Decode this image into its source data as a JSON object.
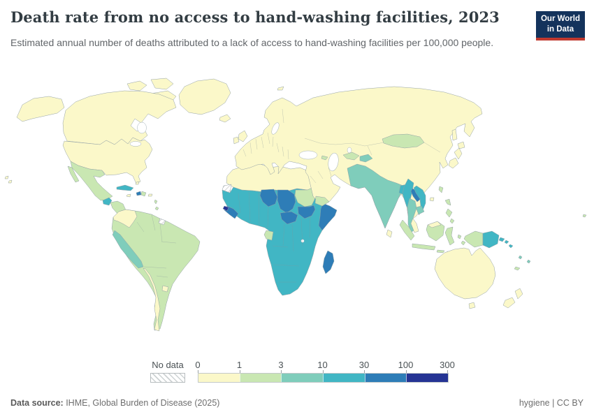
{
  "header": {
    "title": "Death rate from no access to hand-washing facilities, 2023",
    "subtitle": "Estimated annual number of deaths attributed to a lack of access to hand-washing facilities per 100,000 people.",
    "logo": {
      "line1": "Our World",
      "line2": "in Data"
    }
  },
  "legend": {
    "no_data_label": "No data"
  },
  "footer": {
    "source_label": "Data source:",
    "source_text": " IHME, Global Burden of Disease (2025)",
    "right_text": "hygiene | CC BY"
  },
  "chart_data": {
    "type": "choropleth_map",
    "title": "Death rate from no access to hand-washing facilities, 2023",
    "unit": "deaths per 100,000 people",
    "thresholds": [
      "0",
      "1",
      "3",
      "10",
      "30",
      "100",
      "300"
    ],
    "bins": [
      {
        "range": "0-1",
        "color": "#fbf8c9"
      },
      {
        "range": "1-3",
        "color": "#c9e7b2"
      },
      {
        "range": "3-10",
        "color": "#7fcdbb"
      },
      {
        "range": "10-30",
        "color": "#41b6c4"
      },
      {
        "range": "30-100",
        "color": "#2e7db7"
      },
      {
        "range": "100-300",
        "color": "#253494"
      }
    ],
    "no_data": [
      "western-sahara",
      "french-guiana"
    ],
    "regions": {
      "greenland": 0,
      "arctic-islands": 0,
      "canada": 0,
      "united-states": 0,
      "mexico": 1,
      "guatemala": 3,
      "central-america": 1,
      "cuba": 3,
      "haiti": 4,
      "dominican-republic": 1,
      "jamaica": 0,
      "puerto-rico": 0,
      "bahamas": 0,
      "lesser-antilles": 1,
      "south-america": 1,
      "colombia": 0,
      "peru": 2,
      "chile": 0,
      "uruguay": 0,
      "north-africa": 0,
      "sub-saharan-africa": 3,
      "niger": 4,
      "chad": 4,
      "sudan": 1,
      "south-sudan": 4,
      "central-african-republic": 4,
      "somalia": 4,
      "guinea": 4,
      "guinea-bissau": 5,
      "gabon": 1,
      "madagascar": 4,
      "eurasia": 0,
      "mongolia": 1,
      "uzbekistan": 1,
      "tajikistan": 2,
      "caucasus": 1,
      "south-asia": 2,
      "bangladesh": 3,
      "myanmar": 3,
      "thailand": 2,
      "laos": 4,
      "cambodia": 2,
      "vietnam": 3,
      "yemen": 1,
      "united-kingdom": 0,
      "ireland": 0,
      "iceland": 0,
      "svalbard": 0,
      "japan": 0,
      "sakhalin": 0,
      "taiwan": 1,
      "hainan": 0,
      "philippines": 1,
      "sri-lanka": 0,
      "sumatra": 1,
      "java": 1,
      "borneo": 1,
      "malaysia-borneo": 0,
      "sulawesi": 1,
      "lesser-sunda": 1,
      "moluccas": 1,
      "west-new-guinea": 1,
      "papua-new-guinea": 3,
      "solomon-islands": 3,
      "fiji": 2,
      "new-caledonia": 1,
      "australia": 0,
      "tasmania": 0,
      "new-zealand": 0,
      "hawaii": 0,
      "pacific-island": 1
    }
  }
}
